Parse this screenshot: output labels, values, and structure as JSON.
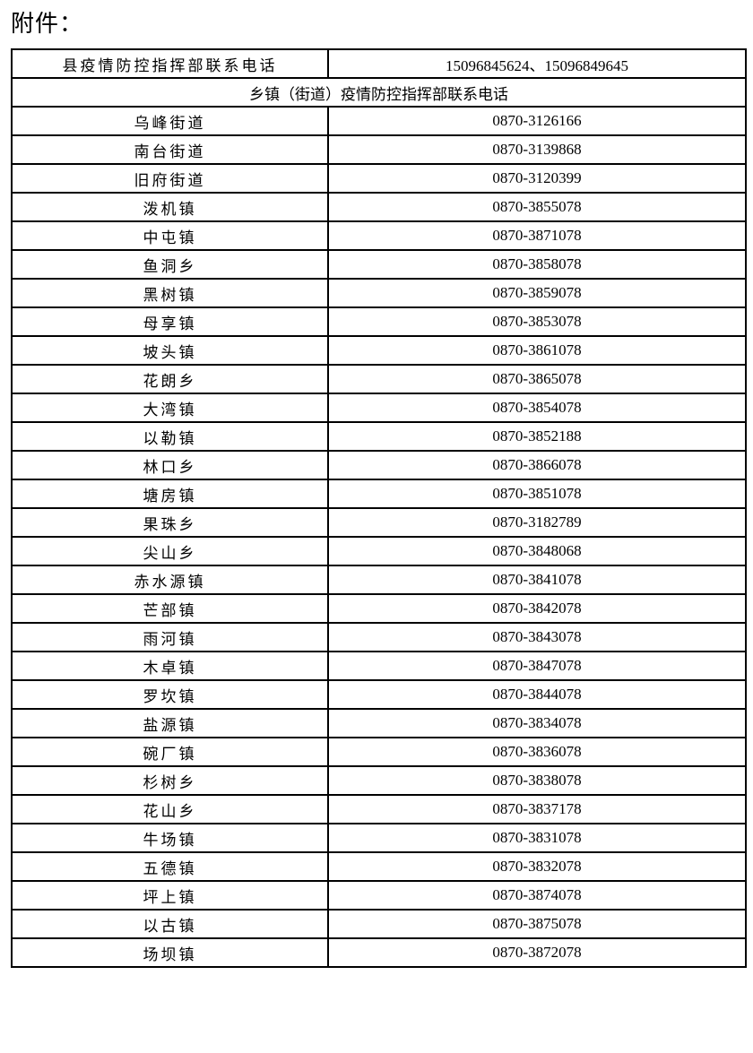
{
  "title": "附件：",
  "county": {
    "label": "县疫情防控指挥部联系电话",
    "phone": "15096845624、15096849645"
  },
  "section_header": "乡镇（街道）疫情防控指挥部联系电话",
  "rows": [
    {
      "name": "乌峰街道",
      "phone": "0870-3126166"
    },
    {
      "name": "南台街道",
      "phone": "0870-3139868"
    },
    {
      "name": "旧府街道",
      "phone": "0870-3120399"
    },
    {
      "name": "泼机镇",
      "phone": "0870-3855078"
    },
    {
      "name": "中屯镇",
      "phone": "0870-3871078"
    },
    {
      "name": "鱼洞乡",
      "phone": "0870-3858078"
    },
    {
      "name": "黑树镇",
      "phone": "0870-3859078"
    },
    {
      "name": "母享镇",
      "phone": "0870-3853078"
    },
    {
      "name": "坡头镇",
      "phone": "0870-3861078"
    },
    {
      "name": "花朗乡",
      "phone": "0870-3865078"
    },
    {
      "name": "大湾镇",
      "phone": "0870-3854078"
    },
    {
      "name": "以勒镇",
      "phone": "0870-3852188"
    },
    {
      "name": "林口乡",
      "phone": "0870-3866078"
    },
    {
      "name": "塘房镇",
      "phone": "0870-3851078"
    },
    {
      "name": "果珠乡",
      "phone": "0870-3182789"
    },
    {
      "name": "尖山乡",
      "phone": "0870-3848068"
    },
    {
      "name": "赤水源镇",
      "phone": "0870-3841078"
    },
    {
      "name": "芒部镇",
      "phone": "0870-3842078"
    },
    {
      "name": "雨河镇",
      "phone": "0870-3843078"
    },
    {
      "name": "木卓镇",
      "phone": "0870-3847078"
    },
    {
      "name": "罗坎镇",
      "phone": "0870-3844078"
    },
    {
      "name": "盐源镇",
      "phone": "0870-3834078"
    },
    {
      "name": "碗厂镇",
      "phone": "0870-3836078"
    },
    {
      "name": "杉树乡",
      "phone": "0870-3838078"
    },
    {
      "name": "花山乡",
      "phone": "0870-3837178"
    },
    {
      "name": "牛场镇",
      "phone": "0870-3831078"
    },
    {
      "name": "五德镇",
      "phone": "0870-3832078"
    },
    {
      "name": "坪上镇",
      "phone": "0870-3874078"
    },
    {
      "name": "以古镇",
      "phone": "0870-3875078"
    },
    {
      "name": "场坝镇",
      "phone": "0870-3872078"
    }
  ]
}
